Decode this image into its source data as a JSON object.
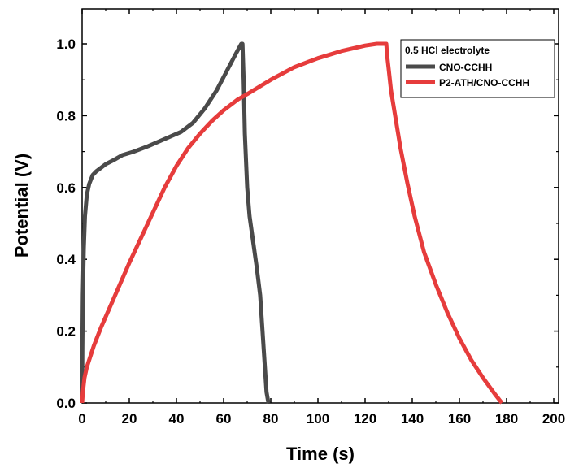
{
  "chart_data": {
    "type": "line",
    "title": "",
    "xlabel": "Time (s)",
    "ylabel": "Potential (V)",
    "xlim": [
      0,
      200
    ],
    "ylim": [
      0,
      1.1
    ],
    "xticks": [
      0,
      20,
      40,
      60,
      80,
      100,
      120,
      140,
      160,
      180,
      200
    ],
    "yticks": [
      0.0,
      0.2,
      0.4,
      0.6,
      0.8,
      1.0
    ],
    "ytick_labels": [
      "0.0",
      "0.2",
      "0.4",
      "0.6",
      "0.8",
      "1.0"
    ],
    "grid": false,
    "legend": {
      "title": "0.5 HCl electrolyte",
      "placement": "top-right"
    },
    "series": [
      {
        "name": "CNO-CCHH",
        "color": "#4a4a4a",
        "x": [
          0,
          0.1,
          0.3,
          0.7,
          1.2,
          2,
          3,
          4.5,
          6,
          8,
          10,
          13,
          17,
          22,
          28,
          35,
          42,
          47,
          52,
          57,
          61,
          65,
          67.5,
          68,
          68.5,
          69,
          70,
          71,
          72.5,
          74,
          75.5,
          76.5,
          77.5,
          78.2,
          79
        ],
        "y": [
          0,
          0.15,
          0.3,
          0.43,
          0.52,
          0.58,
          0.61,
          0.635,
          0.645,
          0.655,
          0.665,
          0.675,
          0.69,
          0.7,
          0.715,
          0.735,
          0.755,
          0.78,
          0.82,
          0.87,
          0.92,
          0.97,
          1.0,
          1.0,
          0.9,
          0.75,
          0.6,
          0.52,
          0.45,
          0.38,
          0.3,
          0.2,
          0.1,
          0.03,
          0.0
        ]
      },
      {
        "name": "P2-ATH/CNO-CCHH",
        "color": "#e63c3c",
        "x": [
          0,
          0.3,
          1,
          2,
          3.5,
          5,
          8,
          12,
          16,
          20,
          25,
          30,
          35,
          40,
          45,
          50,
          55,
          60,
          66,
          70,
          80,
          90,
          100,
          110,
          120,
          125,
          129,
          129.3,
          130,
          131,
          133,
          135,
          138,
          141,
          145,
          150,
          155,
          160,
          165,
          170,
          175,
          178
        ],
        "y": [
          0,
          0.03,
          0.07,
          0.1,
          0.13,
          0.16,
          0.21,
          0.27,
          0.33,
          0.39,
          0.46,
          0.53,
          0.6,
          0.66,
          0.71,
          0.75,
          0.785,
          0.815,
          0.845,
          0.86,
          0.9,
          0.935,
          0.96,
          0.98,
          0.995,
          1.0,
          1.0,
          0.97,
          0.93,
          0.87,
          0.79,
          0.71,
          0.61,
          0.52,
          0.42,
          0.33,
          0.25,
          0.18,
          0.12,
          0.07,
          0.025,
          0.0
        ]
      }
    ]
  }
}
